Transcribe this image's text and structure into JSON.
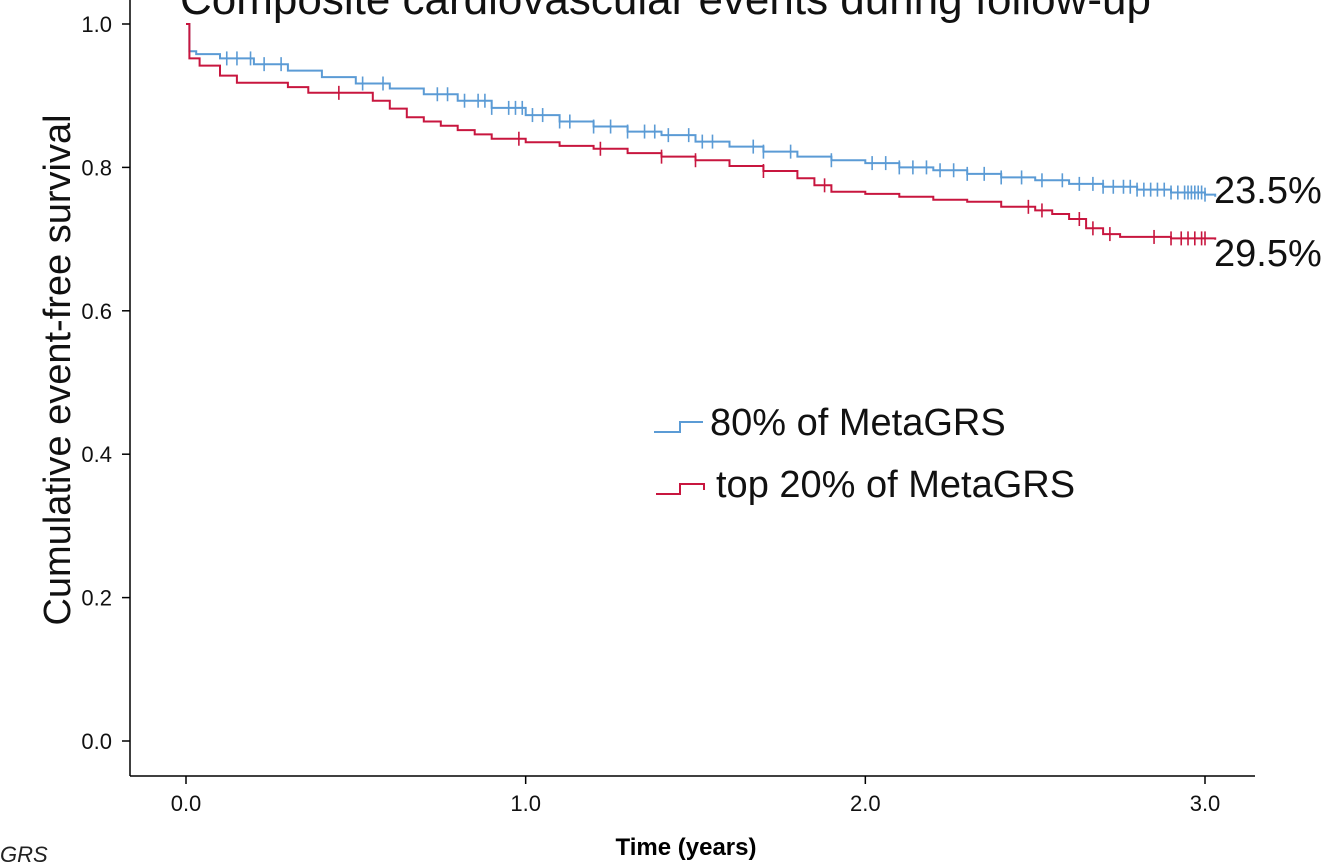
{
  "chart_data": {
    "type": "line",
    "title": "Composite cardiovascular events during follow-up",
    "xlabel": "Time (years)",
    "ylabel": "Cumulative event-free survival",
    "xlim": [
      -0.16,
      3.15
    ],
    "ylim": [
      -0.07,
      1.0
    ],
    "x_ticks": [
      "0.0",
      "1.0",
      "2.0",
      "3.0"
    ],
    "y_ticks": [
      "0.0",
      "0.2",
      "0.4",
      "0.6",
      "0.8",
      "1.0"
    ],
    "grid": false,
    "legend_position": "center-right",
    "series": [
      {
        "name": "80% of MetaGRS",
        "color": "#5b9bd5",
        "end_label": "23.5%",
        "points": [
          [
            0.0,
            1.0
          ],
          [
            0.01,
            0.962
          ],
          [
            0.03,
            0.958
          ],
          [
            0.1,
            0.952
          ],
          [
            0.2,
            0.944
          ],
          [
            0.3,
            0.935
          ],
          [
            0.4,
            0.926
          ],
          [
            0.5,
            0.917
          ],
          [
            0.6,
            0.91
          ],
          [
            0.7,
            0.902
          ],
          [
            0.8,
            0.893
          ],
          [
            0.9,
            0.883
          ],
          [
            1.0,
            0.873
          ],
          [
            1.1,
            0.864
          ],
          [
            1.2,
            0.857
          ],
          [
            1.3,
            0.85
          ],
          [
            1.4,
            0.845
          ],
          [
            1.5,
            0.836
          ],
          [
            1.6,
            0.829
          ],
          [
            1.7,
            0.822
          ],
          [
            1.8,
            0.815
          ],
          [
            1.9,
            0.81
          ],
          [
            2.0,
            0.806
          ],
          [
            2.1,
            0.8
          ],
          [
            2.2,
            0.796
          ],
          [
            2.3,
            0.791
          ],
          [
            2.4,
            0.786
          ],
          [
            2.5,
            0.782
          ],
          [
            2.6,
            0.777
          ],
          [
            2.7,
            0.773
          ],
          [
            2.8,
            0.769
          ],
          [
            2.9,
            0.765
          ],
          [
            3.0,
            0.762
          ],
          [
            3.03,
            0.759
          ]
        ],
        "censor_x": [
          0.12,
          0.15,
          0.19,
          0.23,
          0.28,
          0.52,
          0.58,
          0.74,
          0.77,
          0.82,
          0.86,
          0.88,
          0.9,
          0.95,
          0.97,
          0.99,
          1.02,
          1.05,
          1.1,
          1.13,
          1.2,
          1.25,
          1.3,
          1.35,
          1.38,
          1.42,
          1.48,
          1.52,
          1.55,
          1.67,
          1.7,
          1.78,
          1.9,
          2.02,
          2.06,
          2.1,
          2.14,
          2.18,
          2.22,
          2.26,
          2.3,
          2.35,
          2.4,
          2.46,
          2.52,
          2.58,
          2.63,
          2.67,
          2.7,
          2.73,
          2.76,
          2.78,
          2.8,
          2.82,
          2.84,
          2.86,
          2.88,
          2.9,
          2.92,
          2.94,
          2.95,
          2.96,
          2.97,
          2.98,
          2.99,
          3.0
        ]
      },
      {
        "name": "top 20% of MetaGRS",
        "color": "#c8163f",
        "end_label": "29.5%",
        "points": [
          [
            0.0,
            1.0
          ],
          [
            0.01,
            0.952
          ],
          [
            0.04,
            0.942
          ],
          [
            0.1,
            0.928
          ],
          [
            0.15,
            0.918
          ],
          [
            0.3,
            0.912
          ],
          [
            0.36,
            0.904
          ],
          [
            0.55,
            0.893
          ],
          [
            0.6,
            0.882
          ],
          [
            0.65,
            0.87
          ],
          [
            0.7,
            0.864
          ],
          [
            0.75,
            0.858
          ],
          [
            0.8,
            0.852
          ],
          [
            0.85,
            0.846
          ],
          [
            0.9,
            0.84
          ],
          [
            1.0,
            0.835
          ],
          [
            1.1,
            0.83
          ],
          [
            1.2,
            0.826
          ],
          [
            1.3,
            0.82
          ],
          [
            1.4,
            0.815
          ],
          [
            1.5,
            0.81
          ],
          [
            1.6,
            0.802
          ],
          [
            1.7,
            0.795
          ],
          [
            1.8,
            0.785
          ],
          [
            1.85,
            0.775
          ],
          [
            1.9,
            0.766
          ],
          [
            2.0,
            0.763
          ],
          [
            2.1,
            0.759
          ],
          [
            2.2,
            0.755
          ],
          [
            2.3,
            0.752
          ],
          [
            2.4,
            0.745
          ],
          [
            2.5,
            0.74
          ],
          [
            2.55,
            0.735
          ],
          [
            2.6,
            0.728
          ],
          [
            2.65,
            0.715
          ],
          [
            2.7,
            0.707
          ],
          [
            2.75,
            0.703
          ],
          [
            2.9,
            0.701
          ],
          [
            3.03,
            0.699
          ]
        ],
        "censor_x": [
          0.45,
          0.98,
          1.22,
          1.4,
          1.5,
          1.7,
          1.88,
          2.48,
          2.52,
          2.63,
          2.67,
          2.72,
          2.85,
          2.9,
          2.93,
          2.95,
          2.97,
          2.99,
          3.0
        ]
      }
    ]
  },
  "corner_text": "GRS"
}
